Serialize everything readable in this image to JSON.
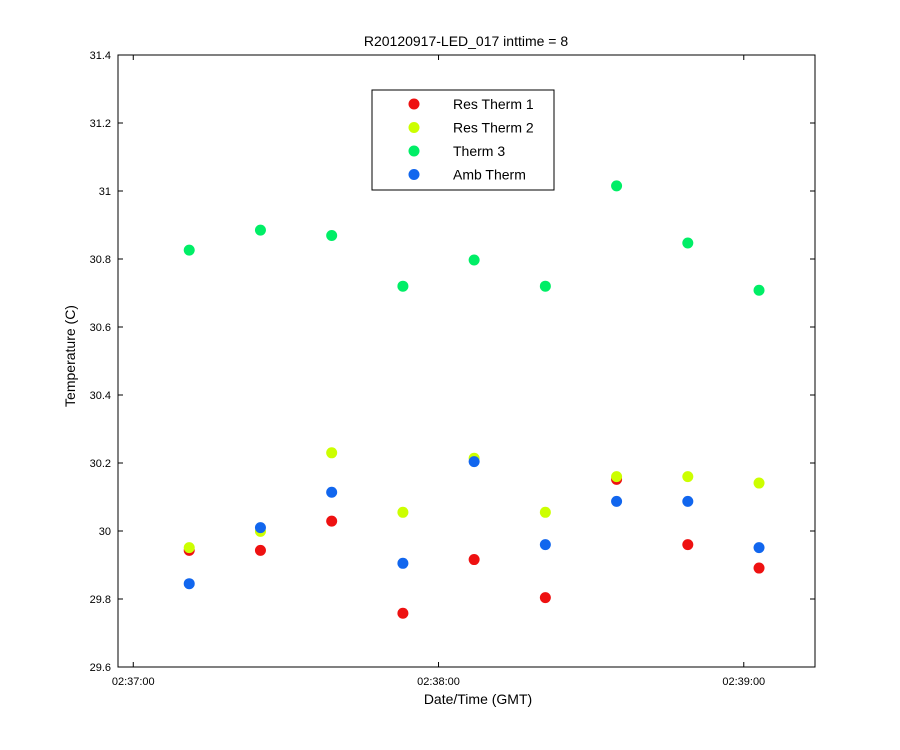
{
  "chart_data": {
    "type": "scatter",
    "title": "R20120917-LED_017 inttime = 8",
    "xlabel": "Date/Time (GMT)",
    "ylabel": "Temperature (C)",
    "ylim": [
      29.6,
      31.4
    ],
    "xlim_seconds": [
      -3,
      134
    ],
    "yticks": [
      29.6,
      29.8,
      30,
      30.2,
      30.4,
      30.6,
      30.8,
      31,
      31.2,
      31.4
    ],
    "ytick_labels": [
      "29.6",
      "29.8",
      "30",
      "30.2",
      "30.4",
      "30.6",
      "30.8",
      "31",
      "31.2",
      "31.4"
    ],
    "xticks_seconds": [
      0,
      60,
      120
    ],
    "xtick_labels": [
      "02:37:00",
      "02:38:00",
      "02:39:00"
    ],
    "x_seconds": [
      11,
      25,
      39,
      53,
      67,
      81,
      95,
      109,
      123
    ],
    "series": [
      {
        "name": "Res Therm 1",
        "color": "#ee1111",
        "values": [
          29.943,
          29.943,
          30.029,
          29.758,
          29.916,
          29.804,
          30.152,
          29.96,
          29.891
        ]
      },
      {
        "name": "Res Therm 2",
        "color": "#ccff00",
        "values": [
          29.951,
          29.999,
          30.23,
          30.055,
          30.214,
          30.055,
          30.16,
          30.16,
          30.141
        ]
      },
      {
        "name": "Therm 3",
        "color": "#00ee66",
        "values": [
          30.826,
          30.885,
          30.869,
          30.72,
          30.797,
          30.72,
          31.015,
          30.847,
          30.708
        ]
      },
      {
        "name": "Amb Therm",
        "color": "#1166ee",
        "values": [
          29.845,
          30.01,
          30.114,
          29.905,
          30.204,
          29.96,
          30.087,
          30.087,
          29.951
        ]
      }
    ],
    "legend_position": "top-center",
    "grid": false
  }
}
